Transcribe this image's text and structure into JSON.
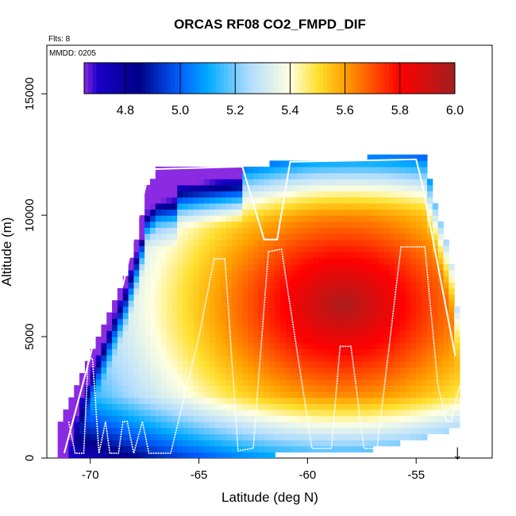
{
  "chart_data": {
    "type": "heatmap",
    "title": "ORCAS RF08 CO2_FMPD_DIF",
    "flights_note": "Flts: 8",
    "date_note": "MMDD: 0205",
    "xlabel": "Latitude (deg N)",
    "ylabel": "Altitude (m)",
    "xlim": [
      -72,
      -51.5
    ],
    "ylim": [
      0,
      17000
    ],
    "x_ticks": [
      -70,
      -65,
      -60,
      -55
    ],
    "x_tick_labels": [
      "-70",
      "-65",
      "-60",
      "-55"
    ],
    "y_ticks": [
      0,
      5000,
      10000,
      15000
    ],
    "y_tick_labels": [
      "0",
      "5000",
      "10000",
      "15000"
    ],
    "colorbar": {
      "min": 4.65,
      "max": 6.0,
      "ticks": [
        4.8,
        5.0,
        5.2,
        5.4,
        5.6,
        5.8,
        6.0
      ],
      "tick_labels": [
        "4.8",
        "5.0",
        "5.2",
        "5.4",
        "5.6",
        "5.8",
        "6.0"
      ],
      "stops": [
        {
          "v": 4.65,
          "c": "#8a2be2"
        },
        {
          "v": 4.7,
          "c": "#1a00c8"
        },
        {
          "v": 4.85,
          "c": "#000088"
        },
        {
          "v": 5.0,
          "c": "#0060ff"
        },
        {
          "v": 5.1,
          "c": "#00aaff"
        },
        {
          "v": 5.25,
          "c": "#b0dcff"
        },
        {
          "v": 5.4,
          "c": "#ffffe0"
        },
        {
          "v": 5.5,
          "c": "#ffe030"
        },
        {
          "v": 5.6,
          "c": "#ffa000"
        },
        {
          "v": 5.7,
          "c": "#ff5000"
        },
        {
          "v": 5.8,
          "c": "#ff0000"
        },
        {
          "v": 5.9,
          "c": "#d01010"
        },
        {
          "v": 6.0,
          "c": "#a02020"
        }
      ]
    },
    "field": {
      "lat_range": [
        -71.5,
        -53
      ],
      "cell_lat": 0.25,
      "cell_alt": 250,
      "top_envelope": [
        [
          -71.5,
          1500
        ],
        [
          -70.5,
          3500
        ],
        [
          -69.5,
          5500
        ],
        [
          -68.5,
          7500
        ],
        [
          -67.8,
          9500
        ],
        [
          -67.5,
          11200
        ],
        [
          -67,
          11800
        ],
        [
          -63,
          11900
        ],
        [
          -60,
          12200
        ],
        [
          -54.7,
          12300
        ],
        [
          -54.5,
          11300
        ],
        [
          -53.5,
          8000
        ],
        [
          -53,
          4200
        ]
      ],
      "bottom_envelope": [
        [
          -71.5,
          200
        ],
        [
          -62,
          200
        ],
        [
          -60,
          400
        ],
        [
          -57,
          500
        ],
        [
          -55,
          900
        ],
        [
          -53,
          1400
        ]
      ],
      "high_value": 5.98,
      "high_center": [
        -58.5,
        6200
      ]
    },
    "flight_track": [
      [
        -71.0,
        1500
      ],
      [
        -70.7,
        200
      ],
      [
        -70.3,
        200
      ],
      [
        -70.1,
        4100
      ],
      [
        -69.9,
        4100
      ],
      [
        -69.6,
        200
      ],
      [
        -69.3,
        1500
      ],
      [
        -69.1,
        200
      ],
      [
        -68.7,
        200
      ],
      [
        -68.5,
        1500
      ],
      [
        -68.3,
        1500
      ],
      [
        -68.0,
        200
      ],
      [
        -67.6,
        1500
      ],
      [
        -67.3,
        200
      ],
      [
        -66.3,
        200
      ],
      [
        -65.0,
        5000
      ],
      [
        -64.3,
        8200
      ],
      [
        -63.8,
        8200
      ],
      [
        -63.2,
        300
      ],
      [
        -62.5,
        400
      ],
      [
        -61.8,
        8500
      ],
      [
        -61.2,
        8600
      ],
      [
        -59.8,
        400
      ],
      [
        -58.9,
        400
      ],
      [
        -58.5,
        4600
      ],
      [
        -58.0,
        4600
      ],
      [
        -57.4,
        400
      ],
      [
        -56.8,
        400
      ],
      [
        -55.7,
        8700
      ],
      [
        -54.6,
        8700
      ],
      [
        -54.0,
        3000
      ],
      [
        -53.6,
        1500
      ],
      [
        -53.4,
        1500
      ],
      [
        -53.0,
        3000
      ]
    ],
    "upper_track": [
      [
        -71.2,
        200
      ],
      [
        -70.0,
        4200
      ],
      [
        -69.2,
        7100
      ],
      [
        -68.5,
        7100
      ],
      [
        -67.4,
        11400
      ],
      [
        -67.0,
        11900
      ],
      [
        -63.0,
        12000
      ],
      [
        -62.0,
        9000
      ],
      [
        -61.4,
        9000
      ],
      [
        -60.8,
        12200
      ],
      [
        -55.0,
        12300
      ],
      [
        -54.7,
        11200
      ],
      [
        -53.2,
        4200
      ]
    ],
    "marker_lat": -53.1,
    "marker_label": "↓"
  }
}
